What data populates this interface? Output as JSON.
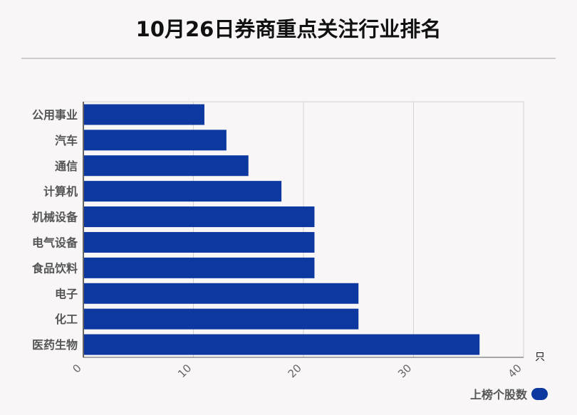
{
  "page": {
    "title": "10月26日券商重点关注行业排名"
  },
  "chart_data": {
    "type": "bar",
    "orientation": "horizontal",
    "title": "10月26日券商重点关注行业排名",
    "categories": [
      "公用事业",
      "汽车",
      "通信",
      "计算机",
      "机械设备",
      "电气设备",
      "食品饮料",
      "电子",
      "化工",
      "医药生物"
    ],
    "series": [
      {
        "name": "上榜个股数",
        "values": [
          11,
          13,
          15,
          18,
          21,
          21,
          21,
          25,
          25,
          36
        ],
        "color": "#0c389f"
      }
    ],
    "xlim": [
      0,
      40
    ],
    "xticks": [
      "0",
      "10",
      "20",
      "30",
      "40"
    ],
    "xunit": "只",
    "grid": true,
    "legend_position": "bottom-right"
  }
}
